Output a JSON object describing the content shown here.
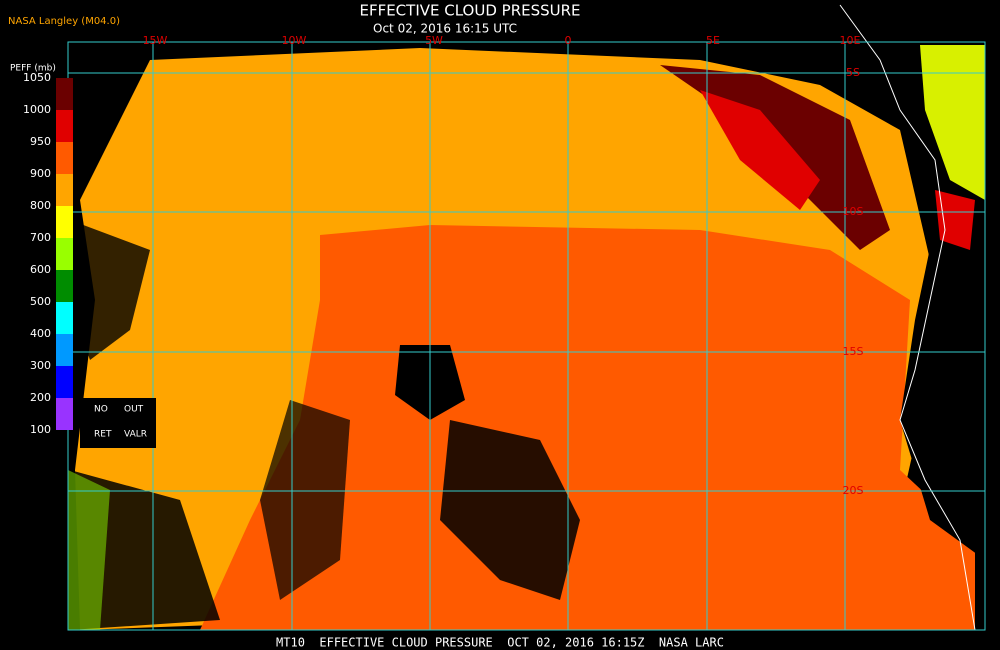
{
  "header": {
    "source": "NASA Langley (M04.0)",
    "title": "EFFECTIVE CLOUD PRESSURE",
    "subtitle": "Oct 02, 2016 16:15 UTC"
  },
  "legend": {
    "title": "PEFF (mb)",
    "ticks": [
      1050,
      1000,
      950,
      900,
      800,
      700,
      600,
      500,
      400,
      300,
      200,
      100
    ],
    "notes": [
      "NO",
      "OUT",
      "RET",
      "VALR"
    ]
  },
  "grid": {
    "lon_labels": [
      "15W",
      "10W",
      "5W",
      "0",
      "5E",
      "10E"
    ],
    "lat_labels": [
      "5S",
      "10S",
      "15S",
      "20S"
    ]
  },
  "footer": "MT10  EFFECTIVE CLOUD PRESSURE  OCT 02, 2016 16:15Z  NASA LARC"
}
